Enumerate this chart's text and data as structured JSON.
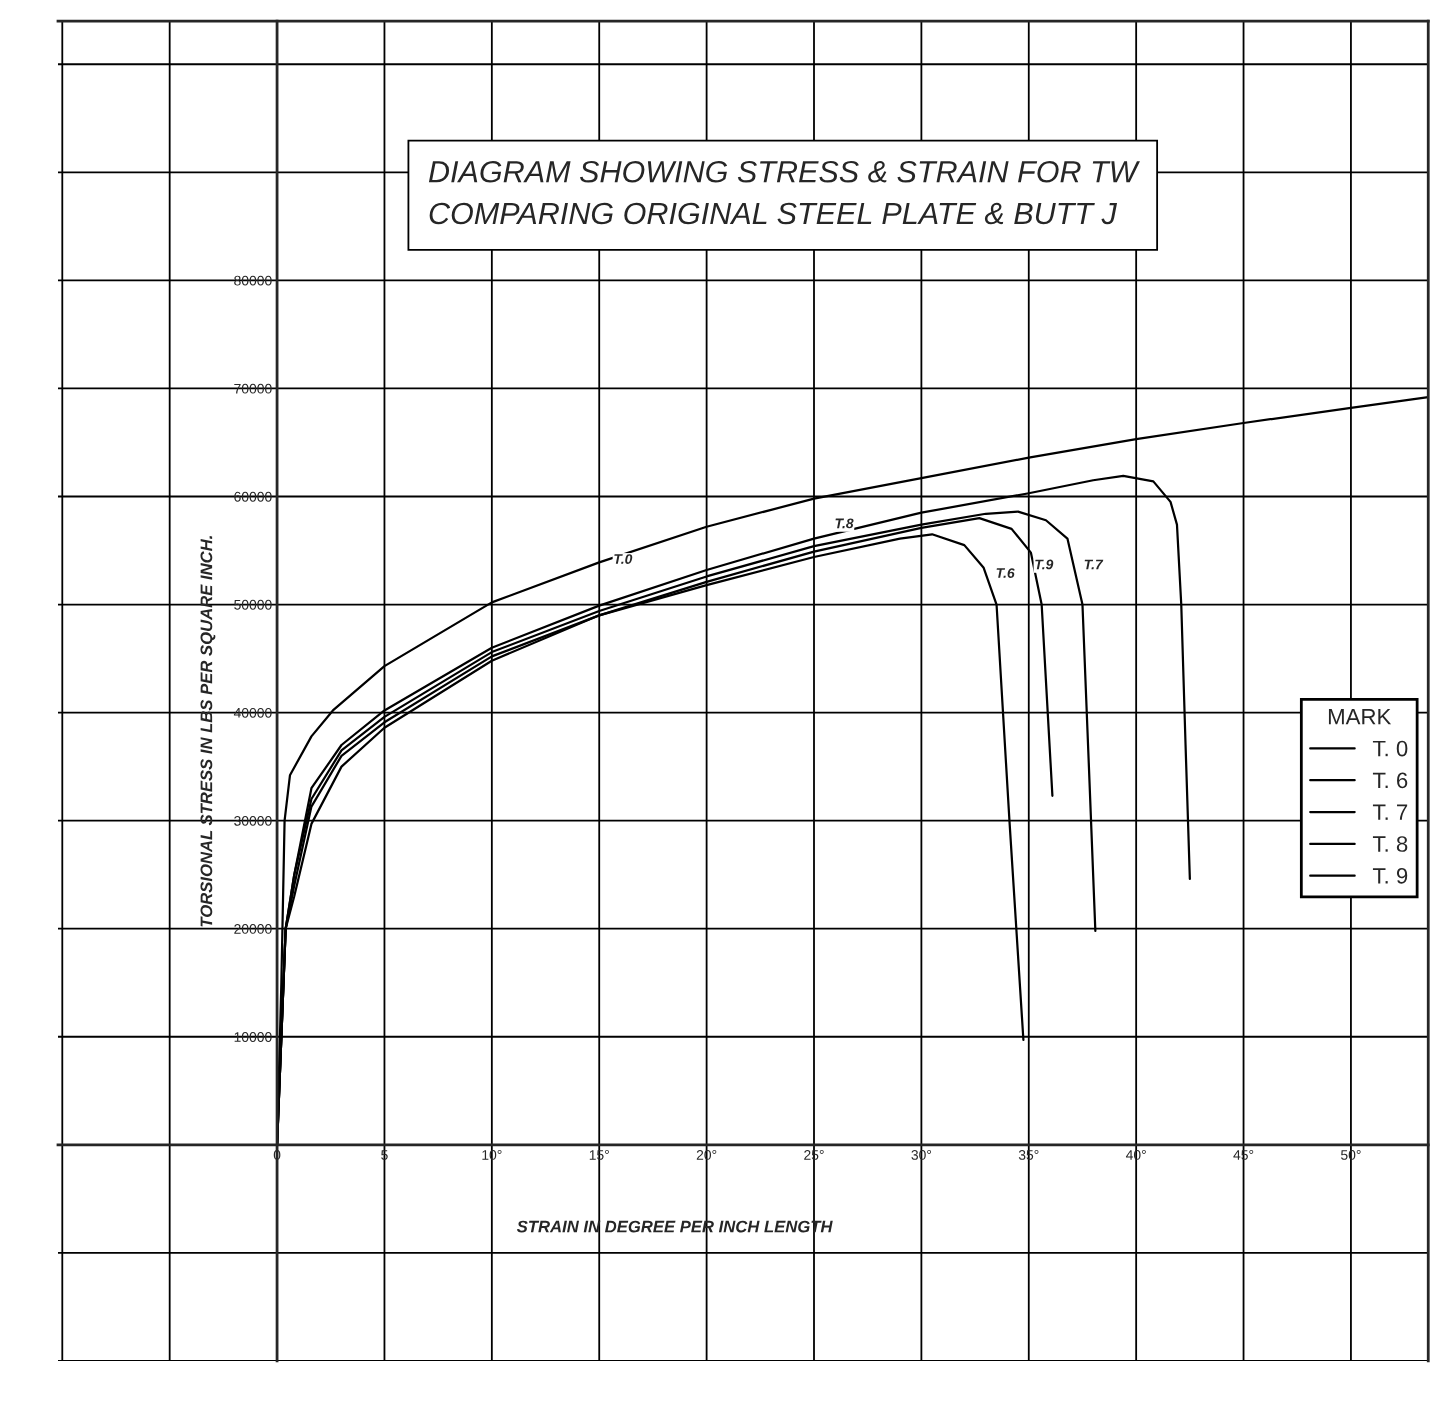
{
  "chart_data": {
    "type": "line",
    "title": "DIAGRAM SHOWING STRESS & STRAIN FOR TW",
    "subtitle": "COMPARING ORIGINAL STEEL PLATE & BUTT J",
    "xlabel": "STRAIN IN DEGREE PER INCH LENGTH",
    "ylabel": "TORSIONAL STRESS IN LBS PER SQUARE INCH.",
    "legend_title": "MARK",
    "legend": "right",
    "grid": true,
    "line_style": "solid",
    "marker": "none",
    "xlim": [
      -10.2,
      53.6
    ],
    "ylim": [
      -20000,
      104000
    ],
    "xticks": [
      {
        "value": -10,
        "label": null
      },
      {
        "value": -5,
        "label": null
      },
      0,
      5,
      {
        "value": 10,
        "label": "10°"
      },
      {
        "value": 15,
        "label": "15°"
      },
      {
        "value": 20,
        "label": "20°"
      },
      {
        "value": 25,
        "label": "25°"
      },
      {
        "value": 30,
        "label": "30°"
      },
      {
        "value": 35,
        "label": "35°"
      },
      {
        "value": 40,
        "label": "40°"
      },
      {
        "value": 45,
        "label": "45°"
      },
      {
        "value": 50,
        "label": "50°"
      }
    ],
    "yticks": [
      {
        "value": -20000,
        "label": null
      },
      {
        "value": -10000,
        "label": null
      },
      {
        "value": 0,
        "label": null
      },
      10000,
      20000,
      30000,
      40000,
      50000,
      60000,
      70000,
      80000,
      {
        "value": 90000,
        "label": null
      },
      {
        "value": 100000,
        "label": null
      }
    ],
    "series": [
      {
        "name": "T. 0",
        "color": "#000000",
        "x": [
          0,
          0.2,
          0.35,
          0.6,
          1.6,
          2.6,
          5,
          10,
          15,
          20,
          25,
          30,
          35,
          40,
          45,
          50,
          53.6
        ],
        "values": [
          0,
          15000,
          30000,
          34200,
          37800,
          40200,
          44300,
          50200,
          53900,
          57200,
          59800,
          61700,
          63600,
          65300,
          66800,
          68200,
          69200
        ]
      },
      {
        "name": "T. 6",
        "color": "#000000",
        "x": [
          0,
          0.2,
          0.4,
          0.8,
          1.6,
          3,
          5,
          10,
          15,
          20,
          25,
          29,
          30.5,
          32,
          32.9,
          33.5,
          34.1,
          34.75
        ],
        "values": [
          0,
          10000,
          20000,
          23000,
          29700,
          35000,
          38600,
          44800,
          49000,
          51800,
          54400,
          56100,
          56500,
          55500,
          53400,
          50000,
          30000,
          9700
        ]
      },
      {
        "name": "T. 7",
        "color": "#000000",
        "x": [
          0,
          0.2,
          0.4,
          0.8,
          1.6,
          3,
          5,
          10,
          15,
          20,
          25,
          30,
          33,
          34.5,
          35.8,
          36.8,
          37.5,
          37.8,
          38.1
        ],
        "values": [
          0,
          10000,
          20000,
          25000,
          32000,
          36500,
          39600,
          45600,
          49400,
          52600,
          55400,
          57400,
          58400,
          58600,
          57800,
          56100,
          50000,
          35000,
          19800
        ]
      },
      {
        "name": "T. 8",
        "color": "#000000",
        "x": [
          0,
          0.2,
          0.4,
          0.8,
          1.6,
          3,
          5,
          10,
          15,
          20,
          25,
          30,
          35,
          38,
          39.4,
          40.8,
          41.6,
          41.9,
          42.1,
          42.3,
          42.5
        ],
        "values": [
          0,
          10000,
          20000,
          25000,
          33000,
          37000,
          40200,
          46000,
          49900,
          53200,
          56100,
          58500,
          60300,
          61500,
          61900,
          61400,
          59500,
          57400,
          50000,
          37000,
          24600
        ]
      },
      {
        "name": "T. 9",
        "color": "#000000",
        "x": [
          0,
          0.2,
          0.4,
          0.8,
          1.6,
          3,
          5,
          10,
          15,
          20,
          25,
          30,
          32.7,
          34.2,
          35.1,
          35.6,
          36.1
        ],
        "values": [
          0,
          10000,
          20000,
          24000,
          31300,
          36000,
          39100,
          45200,
          49000,
          52100,
          54900,
          57100,
          58000,
          57000,
          54800,
          50000,
          32300
        ]
      }
    ],
    "annotations": [
      {
        "text": "T.0",
        "x": 16.1,
        "y": 54100
      },
      {
        "text": "T.8",
        "x": 26.4,
        "y": 57400
      },
      {
        "text": "T.6",
        "x": 33.9,
        "y": 52800
      },
      {
        "text": "T.9",
        "x": 35.7,
        "y": 53600
      },
      {
        "text": "T.7",
        "x": 38.0,
        "y": 53600
      }
    ]
  }
}
